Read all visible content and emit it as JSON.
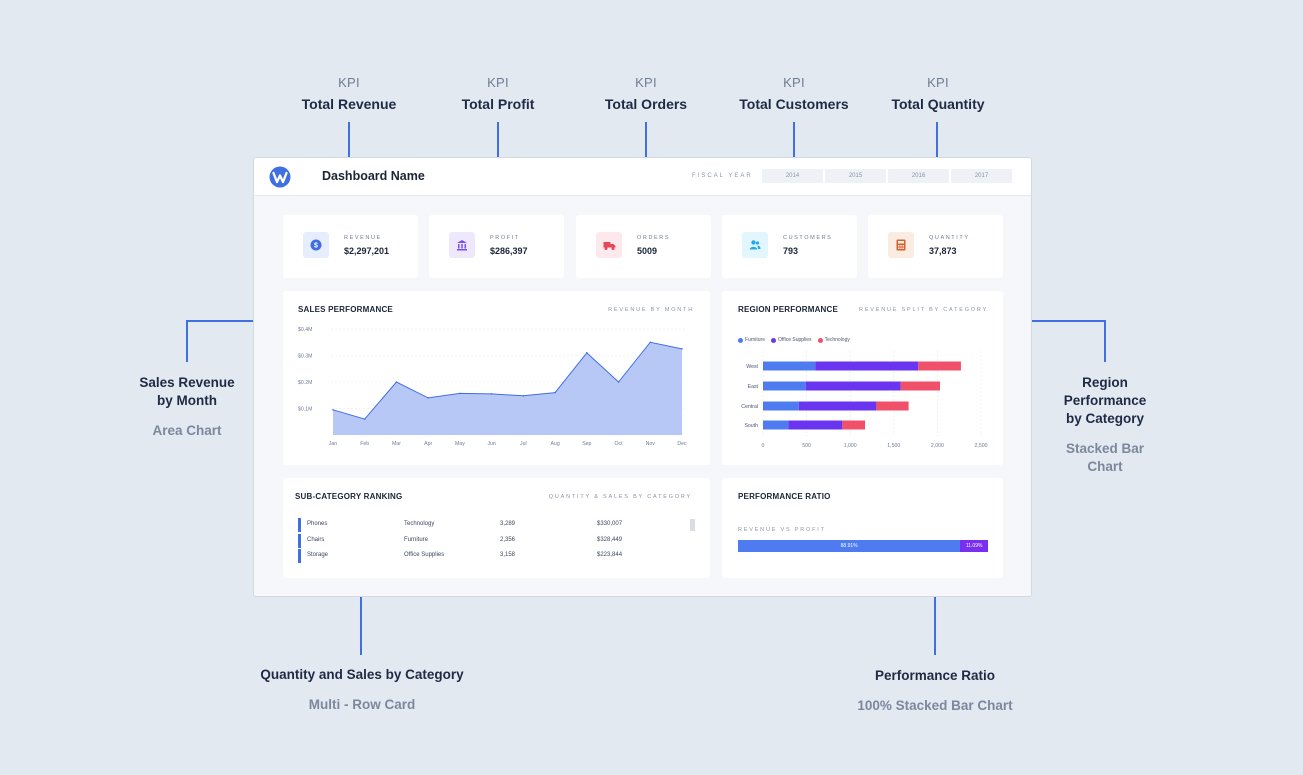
{
  "annotations": {
    "kpis": [
      {
        "kind": "KPI",
        "name": "Total Revenue"
      },
      {
        "kind": "KPI",
        "name": "Total Profit"
      },
      {
        "kind": "KPI",
        "name": "Total Orders"
      },
      {
        "kind": "KPI",
        "name": "Total Customers"
      },
      {
        "kind": "KPI",
        "name": "Total Quantity"
      }
    ],
    "sales_revenue": {
      "title_line1": "Sales Revenue",
      "title_line2": "by Month",
      "type": "Area Chart"
    },
    "region_perf": {
      "title_line1": "Region",
      "title_line2": "Performance",
      "title_line3": "by Category",
      "type_line1": "Stacked Bar",
      "type_line2": "Chart"
    },
    "qty_sales": {
      "title": "Quantity and Sales by Category",
      "type": "Multi - Row Card"
    },
    "perf_ratio": {
      "title": "Performance Ratio",
      "type": "100% Stacked Bar Chart"
    }
  },
  "dashboard": {
    "title": "Dashboard Name",
    "logo_icon": "w-logo-icon",
    "fiscal_year_label": "FISCAL YEAR",
    "years": [
      "2014",
      "2015",
      "2016",
      "2017"
    ]
  },
  "kpi_cards": [
    {
      "label": "REVENUE",
      "value": "$2,297,201",
      "icon": "dollar-icon",
      "color": "#3f6fe0",
      "bg": "#e6edfc"
    },
    {
      "label": "PROFIT",
      "value": "$286,397",
      "icon": "bank-icon",
      "color": "#7a4ff0",
      "bg": "#efe8fd"
    },
    {
      "label": "ORDERS",
      "value": "5009",
      "icon": "truck-icon",
      "color": "#e5485a",
      "bg": "#fde9eb"
    },
    {
      "label": "CUSTOMERS",
      "value": "793",
      "icon": "users-icon",
      "color": "#25a9e6",
      "bg": "#e3f5fd"
    },
    {
      "label": "QUANTITY",
      "value": "37,873",
      "icon": "calculator-icon",
      "color": "#d2622e",
      "bg": "#fbece3"
    }
  ],
  "sales_performance": {
    "title": "SALES PERFORMANCE",
    "subtitle": "REVENUE BY MONTH"
  },
  "region_performance": {
    "title": "REGION PERFORMANCE",
    "subtitle": "REVENUE SPLIT BY CATEGORY"
  },
  "subcategory_ranking": {
    "title": "SUB-CATEGORY RANKING",
    "subtitle": "QUANTITY & SALES BY CATEGORY",
    "rows": [
      {
        "name": "Phones",
        "category": "Technology",
        "quantity": "3,289",
        "sales": "$330,007"
      },
      {
        "name": "Chairs",
        "category": "Furniture",
        "quantity": "2,356",
        "sales": "$328,449"
      },
      {
        "name": "Storage",
        "category": "Office Supplies",
        "quantity": "3,158",
        "sales": "$223,844"
      }
    ]
  },
  "performance_ratio": {
    "title": "PERFORMANCE RATIO",
    "subtitle": "REVENUE VS PROFIT"
  },
  "chart_data": [
    {
      "type": "area",
      "x": [
        "Jan",
        "Feb",
        "Mar",
        "Apr",
        "May",
        "Jun",
        "Jul",
        "Aug",
        "Sep",
        "Oct",
        "Nov",
        "Dec"
      ],
      "values": [
        0.095,
        0.06,
        0.2,
        0.14,
        0.157,
        0.155,
        0.148,
        0.16,
        0.31,
        0.2,
        0.35,
        0.325
      ],
      "yticks": [
        "$0.1M",
        "$0.2M",
        "$0.3M",
        "$0.4M"
      ],
      "ylim": [
        0,
        0.4
      ],
      "color": "#b4c5f6",
      "stroke": "#3f6fe0",
      "grid": true
    },
    {
      "type": "bar",
      "orientation": "horizontal",
      "stacked": true,
      "categories": [
        "West",
        "East",
        "Central",
        "South"
      ],
      "series": [
        {
          "name": "Furniture",
          "values": [
            600,
            490,
            410,
            290
          ],
          "color": "#4f7bf0"
        },
        {
          "name": "Office Supplies",
          "values": [
            1180,
            1090,
            890,
            620
          ],
          "color": "#6a35f0"
        },
        {
          "name": "Technology",
          "values": [
            490,
            450,
            370,
            260
          ],
          "color": "#f0506a"
        }
      ],
      "xticks": [
        "0",
        "500",
        "1,000",
        "1,500",
        "2,000",
        "2,500"
      ],
      "xlim": [
        0,
        2500
      ],
      "legend": "top-left",
      "grid": true
    },
    {
      "type": "bar",
      "orientation": "horizontal",
      "stacked": true,
      "percent": true,
      "series": [
        {
          "name": "Revenue",
          "value": 88.91,
          "label": "88.91%",
          "color": "#4f7bf0"
        },
        {
          "name": "Profit",
          "value": 11.09,
          "label": "11.09%",
          "color": "#7a2ff0"
        }
      ]
    }
  ]
}
